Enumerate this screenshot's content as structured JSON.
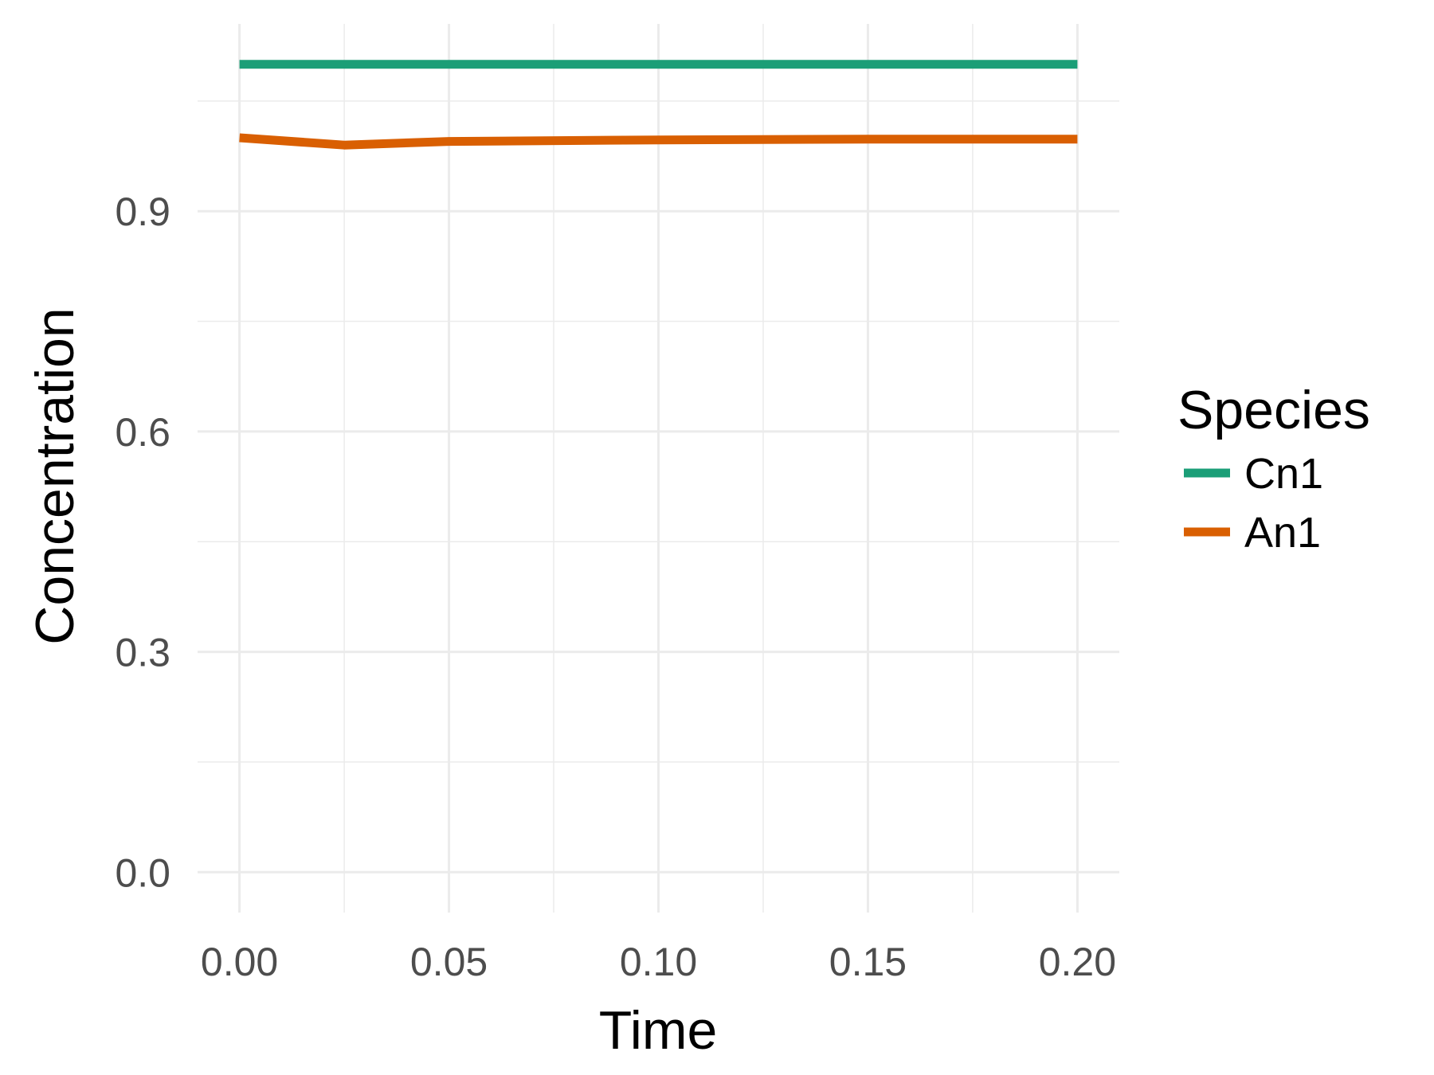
{
  "chart_data": {
    "type": "line",
    "title": "",
    "xlabel": "Time",
    "ylabel": "Concentration",
    "xlim": [
      -0.01,
      0.21
    ],
    "ylim": [
      -0.055,
      1.155
    ],
    "x_ticks": [
      0.0,
      0.05,
      0.1,
      0.15,
      0.2
    ],
    "x_tick_labels": [
      "0.00",
      "0.05",
      "0.10",
      "0.15",
      "0.20"
    ],
    "y_ticks": [
      0.0,
      0.3,
      0.6,
      0.9
    ],
    "y_tick_labels": [
      "0.0",
      "0.3",
      "0.6",
      "0.9"
    ],
    "grid": true,
    "legend": {
      "title": "Species",
      "position": "right"
    },
    "series": [
      {
        "name": "Cn1",
        "color": "#1b9e77",
        "x": [
          0.0,
          0.025,
          0.05,
          0.1,
          0.15,
          0.2
        ],
        "y": [
          1.1,
          1.1,
          1.1,
          1.1,
          1.1,
          1.1
        ]
      },
      {
        "name": "An1",
        "color": "#d95f02",
        "x": [
          0.0,
          0.025,
          0.05,
          0.1,
          0.15,
          0.2
        ],
        "y": [
          1.0,
          0.99,
          0.995,
          0.997,
          0.998,
          0.998
        ]
      }
    ]
  }
}
